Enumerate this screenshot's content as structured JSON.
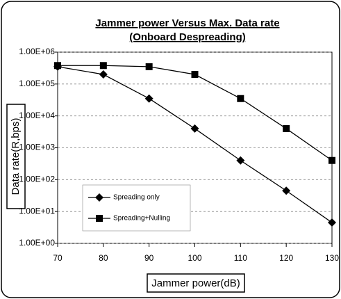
{
  "chart_data": {
    "type": "line",
    "title": [
      "Jammer power Versus Max. Data rate",
      "(Onboard Despreading)"
    ],
    "x_label": "Jammer power(dB)",
    "y_label": "Data rate(R,bps)",
    "x": [
      70,
      80,
      90,
      100,
      110,
      120,
      130
    ],
    "xlim": [
      70,
      130
    ],
    "xticks": [
      70,
      80,
      90,
      100,
      110,
      120,
      130
    ],
    "y_scale": "log",
    "ylim": [
      1,
      1000000
    ],
    "yticks": [
      {
        "value": 1,
        "label": "1.00E+00"
      },
      {
        "value": 10,
        "label": "1.00E+01"
      },
      {
        "value": 100,
        "label": "1.00E+02"
      },
      {
        "value": 1000,
        "label": "1.00E+03"
      },
      {
        "value": 10000,
        "label": "1.00E+04"
      },
      {
        "value": 100000,
        "label": "1.00E+05"
      },
      {
        "value": 1000000,
        "label": "1.00E+06"
      }
    ],
    "grid": true,
    "legend": "lower left",
    "series": [
      {
        "name": "Spreading only",
        "color": "#000000",
        "marker": "diamond",
        "values": [
          350000,
          200000,
          35000,
          4000,
          400,
          45,
          4.5
        ]
      },
      {
        "name": "Spreading+Nulling",
        "color": "#000000",
        "marker": "square",
        "values": [
          380000,
          380000,
          350000,
          200000,
          35000,
          4000,
          400
        ]
      }
    ]
  }
}
